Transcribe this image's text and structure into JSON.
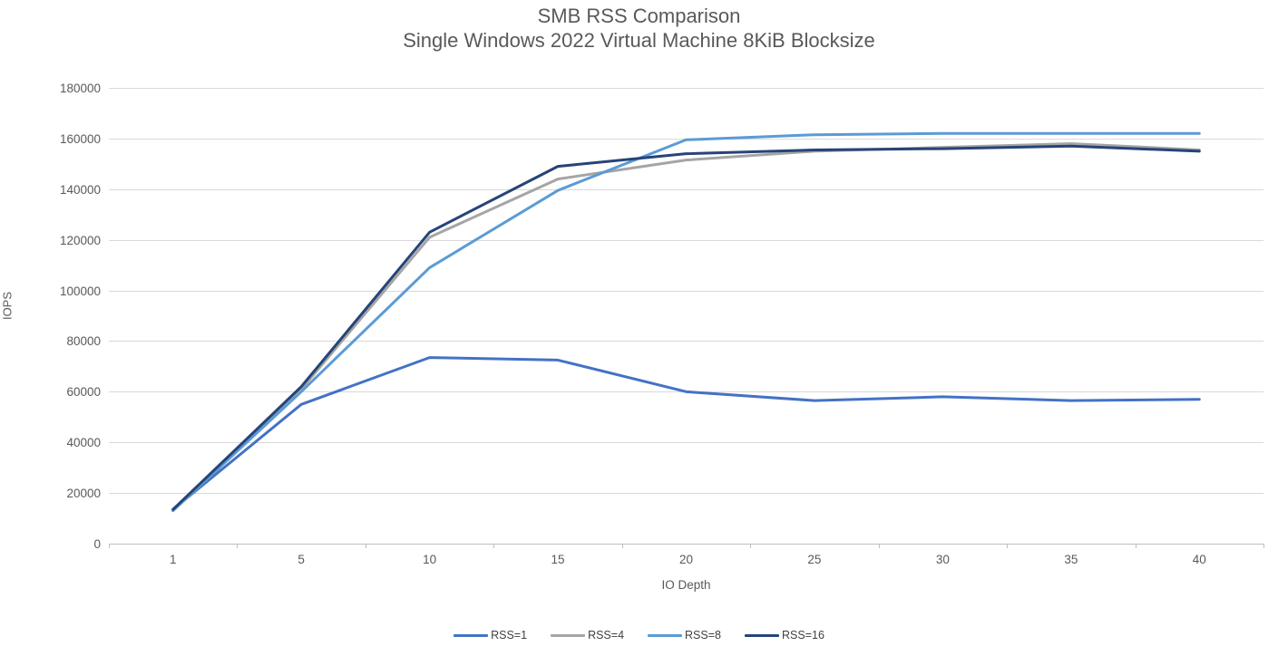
{
  "title": {
    "line1": "SMB RSS Comparison",
    "line2": "Single Windows 2022 Virtual Machine 8KiB Blocksize"
  },
  "chart_data": {
    "type": "line",
    "title": "SMB RSS Comparison",
    "subtitle": "Single Windows 2022 Virtual Machine 8KiB Blocksize",
    "xlabel": "IO Depth",
    "ylabel": "IOPS",
    "categories": [
      1,
      5,
      10,
      15,
      20,
      25,
      30,
      35,
      40
    ],
    "y_ticks": [
      0,
      20000,
      40000,
      60000,
      80000,
      100000,
      120000,
      140000,
      160000,
      180000
    ],
    "ylim": [
      0,
      180000
    ],
    "grid": "horizontal",
    "legend_position": "bottom",
    "series": [
      {
        "name": "RSS=1",
        "color": "#4472C4",
        "values": [
          13500,
          55000,
          73500,
          72500,
          60000,
          56500,
          58000,
          56500,
          57000
        ]
      },
      {
        "name": "RSS=4",
        "color": "#A5A5A5",
        "values": [
          13500,
          61000,
          121000,
          144000,
          151500,
          155000,
          156500,
          158000,
          155500
        ]
      },
      {
        "name": "RSS=8",
        "color": "#5B9BD5",
        "values": [
          13000,
          60000,
          109000,
          139500,
          159500,
          161500,
          162000,
          162000,
          162000
        ]
      },
      {
        "name": "RSS=16",
        "color": "#264478",
        "values": [
          13500,
          62000,
          123000,
          149000,
          154000,
          155500,
          156000,
          157000,
          155000
        ]
      }
    ],
    "colors": {
      "gridline": "#D9D9D9",
      "axis_line": "#BFBFBF",
      "tick_text": "#595959"
    }
  }
}
